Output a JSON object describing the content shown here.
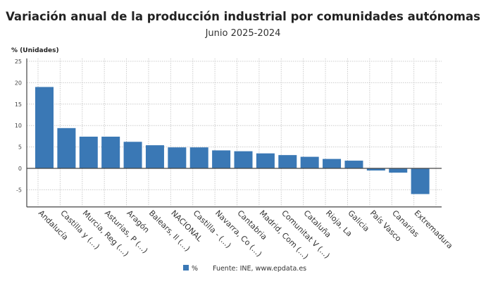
{
  "chart_data": {
    "type": "bar",
    "title": "Variación anual de la producción industrial por comunidades autónomas",
    "subtitle": "Junio 2025-2024",
    "ylabel": "% (Unidades)",
    "xlabel": "",
    "ylim": [
      -9,
      25
    ],
    "yticks": [
      25,
      20,
      15,
      10,
      5,
      0,
      -5
    ],
    "grid": true,
    "legend_position": "bottom",
    "color": "#3a78b5",
    "categories": [
      "Andalucía",
      "Castilla y (...)",
      "Murcia, Reg (...)",
      "Asturias, P (...)",
      "Aragón",
      "Balears, Il (...)",
      "NACIONAL",
      "Castilla - (...)",
      "Navarra, Co (...)",
      "Cantabria",
      "Madrid, Com (...)",
      "Comunitat V (...)",
      "Cataluña",
      "Rioja, La",
      "Galicia",
      "País Vasco",
      "Canarias",
      "Extremadura"
    ],
    "series": [
      {
        "name": "%",
        "values": [
          19.0,
          9.4,
          7.4,
          7.4,
          6.2,
          5.4,
          4.9,
          4.9,
          4.2,
          4.0,
          3.5,
          3.1,
          2.7,
          2.2,
          1.8,
          -0.5,
          -1.0,
          -6.0
        ]
      }
    ],
    "source": "Fuente: INE, www.epdata.es"
  }
}
